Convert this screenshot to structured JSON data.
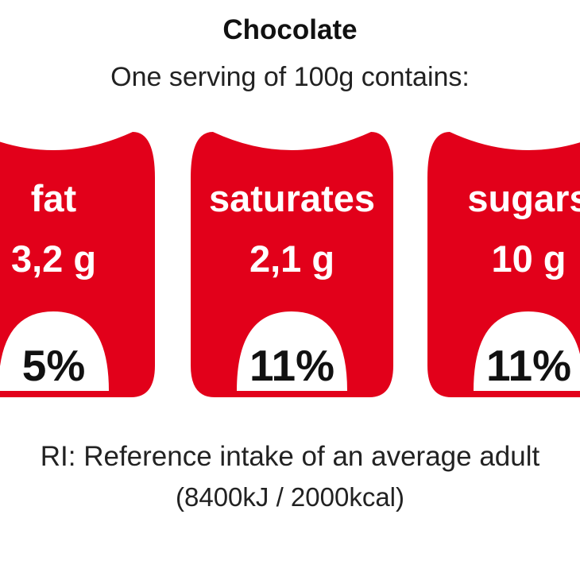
{
  "title": "Chocolate",
  "subtitle": "One serving of 100g contains:",
  "colors": {
    "badge_fill": "#e2001a",
    "badge_text": "#ffffff",
    "percent_text": "#111111",
    "background": "#ffffff"
  },
  "nutrients": [
    {
      "name": "fat",
      "amount": "3,2 g",
      "percent": "5%"
    },
    {
      "name": "saturates",
      "amount": "2,1 g",
      "percent": "11%"
    },
    {
      "name": "sugars",
      "amount": "10 g",
      "percent": "11%"
    }
  ],
  "footnote": {
    "line1": "RI: Reference intake of an average adult",
    "line2": "(8400kJ / 2000kcal)"
  }
}
